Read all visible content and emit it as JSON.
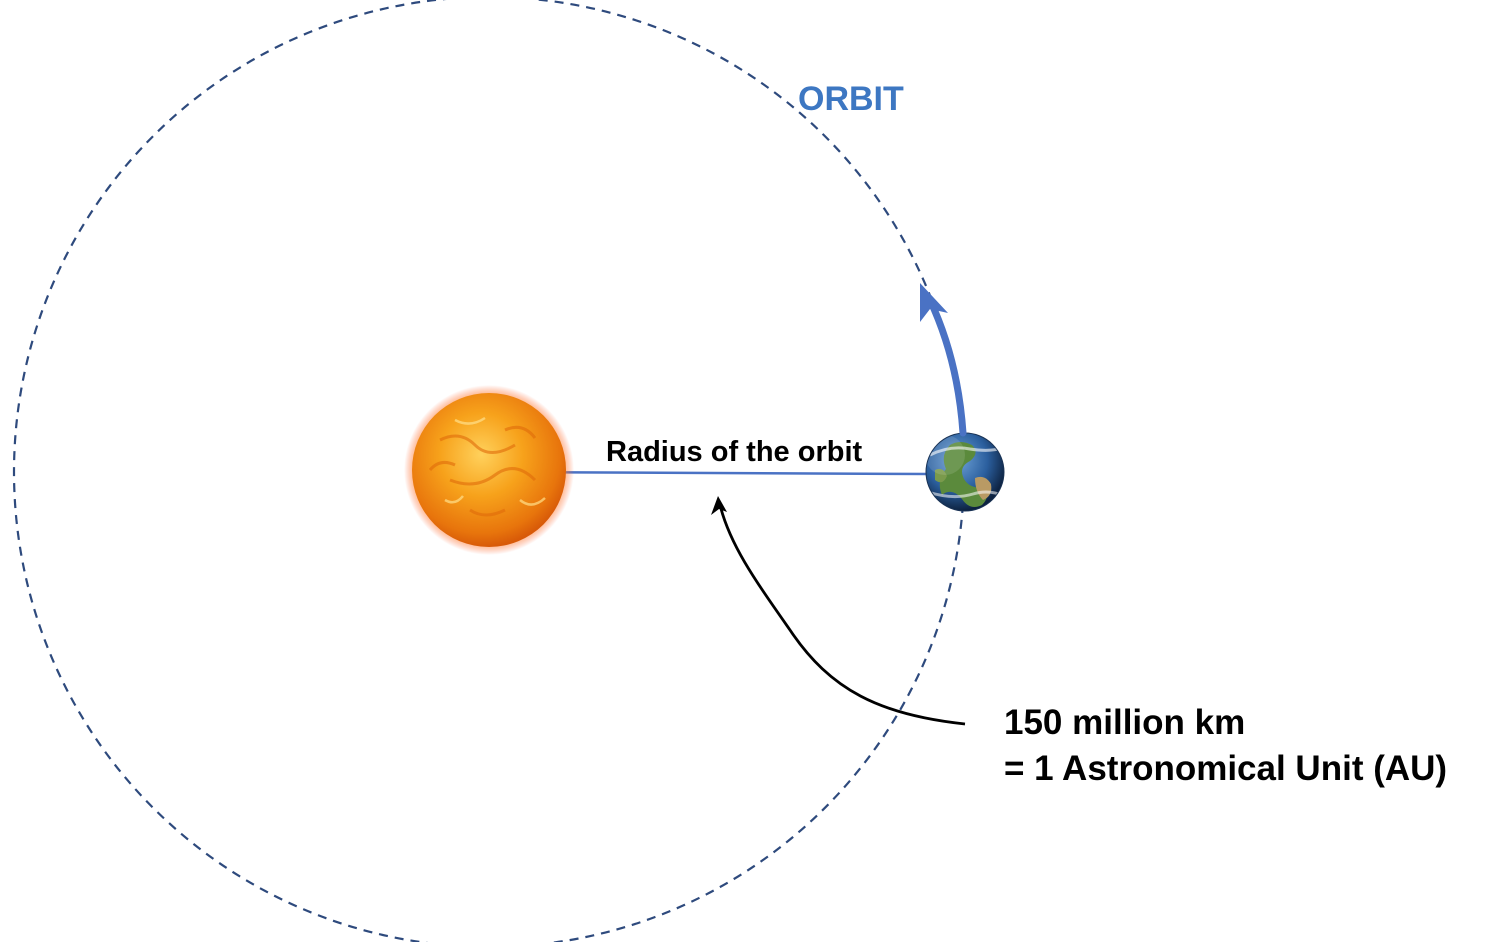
{
  "labels": {
    "orbit": "ORBIT",
    "radius": "Radius of the orbit",
    "distance_line1": "150 million km",
    "distance_line2": "= 1 Astronomical Unit (AU)"
  },
  "icons": {
    "sun": "sun-icon",
    "earth": "earth-icon"
  },
  "colors": {
    "orbit_path": "#2e4a7d",
    "orbit_label": "#3d77c2",
    "radius_line": "#4a72c4",
    "motion_arrow": "#4a72c4",
    "pointer_arrow": "#000000",
    "sun_core": "#f7a21b",
    "earth_ocean": "#2b5f9e"
  }
}
